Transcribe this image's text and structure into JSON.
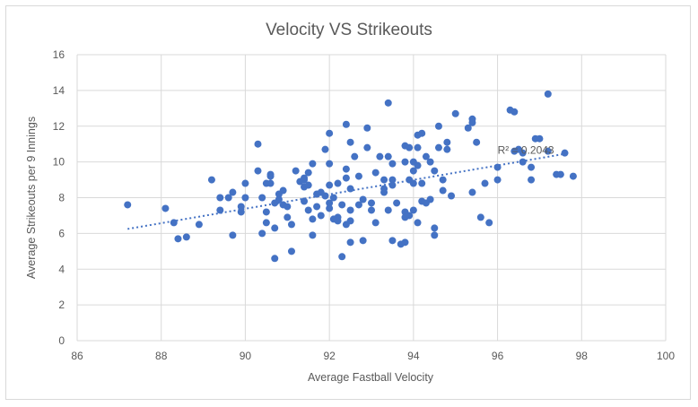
{
  "chart_data": {
    "type": "scatter",
    "title": "Velocity VS Strikeouts",
    "xlabel": "Average Fastball Velocity",
    "ylabel": "Average Strikeouts per 9 Innings",
    "xlim": [
      86,
      100
    ],
    "ylim": [
      0,
      16
    ],
    "x_ticks": [
      "86",
      "88",
      "90",
      "92",
      "94",
      "96",
      "98",
      "100"
    ],
    "y_ticks": [
      "0",
      "2",
      "4",
      "6",
      "8",
      "10",
      "12",
      "14",
      "16"
    ],
    "grid": true,
    "marker_color": "#4472c4",
    "trendline": {
      "type": "linear",
      "x": [
        87.2,
        97.6
      ],
      "y": [
        6.25,
        10.45
      ],
      "label": "R² = 0.2043"
    },
    "points": [
      [
        87.2,
        7.6
      ],
      [
        88.1,
        7.4
      ],
      [
        88.3,
        6.6
      ],
      [
        88.4,
        5.7
      ],
      [
        88.6,
        5.8
      ],
      [
        88.9,
        6.5
      ],
      [
        89.2,
        9.0
      ],
      [
        89.4,
        8.0
      ],
      [
        89.4,
        7.3
      ],
      [
        89.6,
        8.0
      ],
      [
        89.7,
        8.3
      ],
      [
        89.7,
        5.9
      ],
      [
        89.9,
        7.5
      ],
      [
        89.9,
        7.2
      ],
      [
        90.0,
        8.8
      ],
      [
        90.0,
        8.0
      ],
      [
        90.3,
        11.0
      ],
      [
        90.3,
        9.5
      ],
      [
        90.4,
        8.0
      ],
      [
        90.4,
        6.0
      ],
      [
        90.5,
        8.8
      ],
      [
        90.6,
        9.3
      ],
      [
        90.6,
        9.2
      ],
      [
        90.6,
        8.8
      ],
      [
        90.5,
        7.2
      ],
      [
        90.5,
        6.6
      ],
      [
        90.7,
        7.7
      ],
      [
        90.7,
        6.3
      ],
      [
        90.7,
        4.6
      ],
      [
        90.8,
        8.2
      ],
      [
        90.9,
        8.4
      ],
      [
        90.9,
        7.6
      ],
      [
        91.0,
        7.5
      ],
      [
        91.0,
        6.9
      ],
      [
        91.1,
        6.5
      ],
      [
        91.1,
        5.0
      ],
      [
        91.2,
        9.5
      ],
      [
        91.3,
        8.9
      ],
      [
        91.4,
        8.6
      ],
      [
        91.4,
        9.1
      ],
      [
        91.5,
        8.7
      ],
      [
        91.5,
        9.4
      ],
      [
        91.4,
        7.8
      ],
      [
        91.5,
        7.3
      ],
      [
        91.6,
        6.8
      ],
      [
        91.6,
        5.9
      ],
      [
        91.6,
        9.9
      ],
      [
        91.7,
        8.2
      ],
      [
        91.7,
        7.5
      ],
      [
        91.8,
        8.3
      ],
      [
        91.8,
        7.0
      ],
      [
        91.9,
        8.1
      ],
      [
        91.9,
        10.7
      ],
      [
        92.0,
        9.9
      ],
      [
        92.0,
        11.6
      ],
      [
        92.0,
        8.7
      ],
      [
        92.0,
        7.7
      ],
      [
        92.0,
        7.4
      ],
      [
        92.1,
        8.0
      ],
      [
        92.1,
        6.8
      ],
      [
        92.2,
        6.9
      ],
      [
        92.2,
        8.8
      ],
      [
        92.3,
        7.6
      ],
      [
        92.2,
        6.7
      ],
      [
        92.3,
        4.7
      ],
      [
        92.4,
        12.1
      ],
      [
        92.4,
        9.6
      ],
      [
        92.4,
        9.1
      ],
      [
        92.4,
        6.5
      ],
      [
        92.5,
        11.1
      ],
      [
        92.5,
        8.5
      ],
      [
        92.5,
        7.3
      ],
      [
        92.5,
        6.7
      ],
      [
        92.5,
        5.5
      ],
      [
        92.6,
        10.3
      ],
      [
        92.7,
        9.2
      ],
      [
        92.8,
        7.9
      ],
      [
        92.8,
        5.6
      ],
      [
        92.9,
        11.9
      ],
      [
        92.9,
        10.8
      ],
      [
        93.0,
        7.7
      ],
      [
        93.0,
        7.3
      ],
      [
        93.1,
        6.6
      ],
      [
        93.2,
        10.3
      ],
      [
        93.3,
        9.0
      ],
      [
        93.3,
        8.5
      ],
      [
        93.3,
        8.3
      ],
      [
        93.4,
        7.3
      ],
      [
        93.4,
        13.3
      ],
      [
        93.4,
        10.3
      ],
      [
        93.5,
        9.9
      ],
      [
        93.5,
        9.0
      ],
      [
        93.5,
        8.7
      ],
      [
        93.5,
        5.6
      ],
      [
        93.6,
        7.7
      ],
      [
        93.7,
        5.4
      ],
      [
        93.8,
        10.9
      ],
      [
        93.8,
        10.0
      ],
      [
        93.8,
        7.2
      ],
      [
        93.8,
        6.9
      ],
      [
        93.8,
        5.5
      ],
      [
        93.9,
        10.8
      ],
      [
        93.9,
        9.0
      ],
      [
        93.9,
        7.0
      ],
      [
        94.0,
        10.0
      ],
      [
        94.0,
        9.5
      ],
      [
        94.0,
        8.8
      ],
      [
        94.0,
        7.3
      ],
      [
        94.1,
        9.8
      ],
      [
        94.1,
        6.6
      ],
      [
        94.1,
        11.5
      ],
      [
        94.1,
        10.8
      ],
      [
        94.2,
        11.6
      ],
      [
        94.2,
        8.8
      ],
      [
        94.3,
        10.3
      ],
      [
        94.3,
        7.7
      ],
      [
        94.4,
        10.0
      ],
      [
        94.4,
        7.9
      ],
      [
        94.5,
        9.5
      ],
      [
        94.5,
        6.3
      ],
      [
        94.5,
        5.9
      ],
      [
        94.6,
        12.0
      ],
      [
        94.6,
        10.8
      ],
      [
        94.7,
        9.0
      ],
      [
        94.7,
        8.4
      ],
      [
        94.8,
        11.1
      ],
      [
        94.8,
        10.7
      ],
      [
        94.9,
        8.1
      ],
      [
        95.0,
        12.7
      ],
      [
        95.3,
        11.9
      ],
      [
        95.4,
        12.2
      ],
      [
        95.4,
        12.4
      ],
      [
        95.5,
        11.1
      ],
      [
        95.4,
        8.3
      ],
      [
        95.6,
        6.9
      ],
      [
        95.7,
        8.8
      ],
      [
        95.8,
        6.6
      ],
      [
        96.0,
        9.7
      ],
      [
        96.0,
        9.0
      ],
      [
        96.3,
        12.9
      ],
      [
        96.4,
        12.8
      ],
      [
        96.4,
        10.6
      ],
      [
        96.5,
        10.7
      ],
      [
        96.6,
        10.5
      ],
      [
        96.6,
        10.0
      ],
      [
        96.8,
        9.7
      ],
      [
        96.8,
        9.0
      ],
      [
        96.9,
        11.3
      ],
      [
        97.0,
        11.3
      ],
      [
        97.2,
        13.8
      ],
      [
        97.2,
        10.6
      ],
      [
        97.4,
        9.3
      ],
      [
        97.5,
        9.3
      ],
      [
        97.6,
        10.5
      ],
      [
        97.8,
        9.2
      ],
      [
        93.1,
        9.4
      ],
      [
        91.4,
        9.0
      ],
      [
        94.2,
        7.8
      ],
      [
        92.7,
        7.6
      ],
      [
        90.8,
        7.9
      ]
    ]
  }
}
